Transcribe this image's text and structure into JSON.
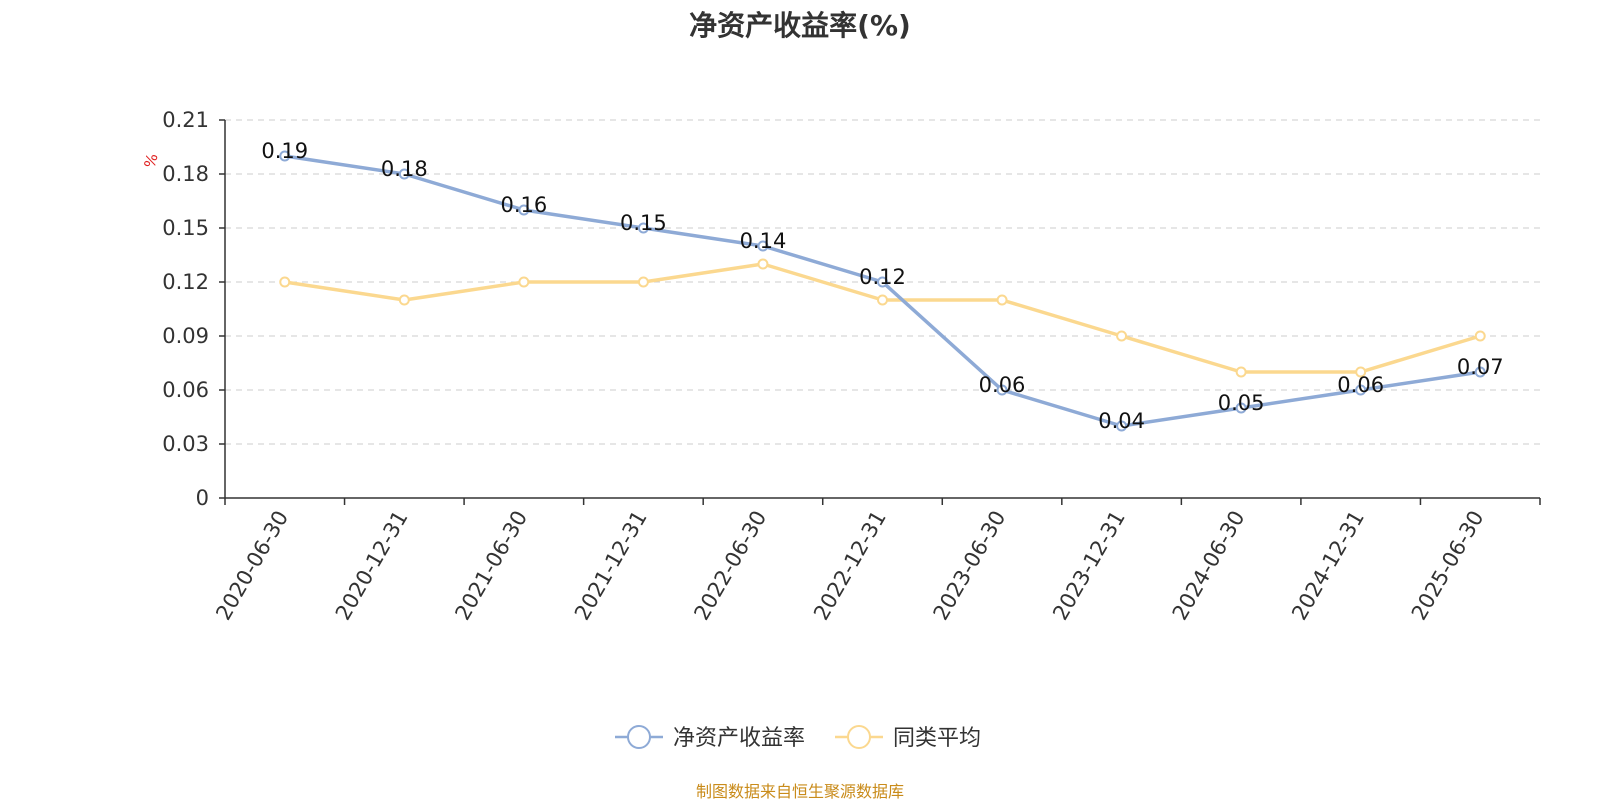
{
  "chart_data": {
    "type": "line",
    "title": "净资产收益率(%)",
    "y_unit_label": "%",
    "categories": [
      "2020-06-30",
      "2020-12-31",
      "2021-06-30",
      "2021-12-31",
      "2022-06-30",
      "2022-12-31",
      "2023-06-30",
      "2023-12-31",
      "2024-06-30",
      "2024-12-31",
      "2025-06-30"
    ],
    "series": [
      {
        "name": "净资产收益率",
        "values": [
          0.19,
          0.18,
          0.16,
          0.15,
          0.14,
          0.12,
          0.06,
          0.04,
          0.05,
          0.06,
          0.07
        ],
        "data_labels": true,
        "color": "#8eaad6"
      },
      {
        "name": "同类平均",
        "values": [
          0.12,
          0.11,
          0.12,
          0.12,
          0.13,
          0.11,
          0.11,
          0.09,
          0.07,
          0.07,
          0.09
        ],
        "data_labels": false,
        "color": "#fbd88f"
      }
    ],
    "y_ticks": [
      "0",
      "0.03",
      "0.06",
      "0.09",
      "0.12",
      "0.15",
      "0.18",
      "0.21"
    ],
    "ylim": [
      0,
      0.21
    ],
    "grid": true,
    "legend_position": "bottom",
    "source_note": "制图数据来自恒生聚源数据库"
  }
}
